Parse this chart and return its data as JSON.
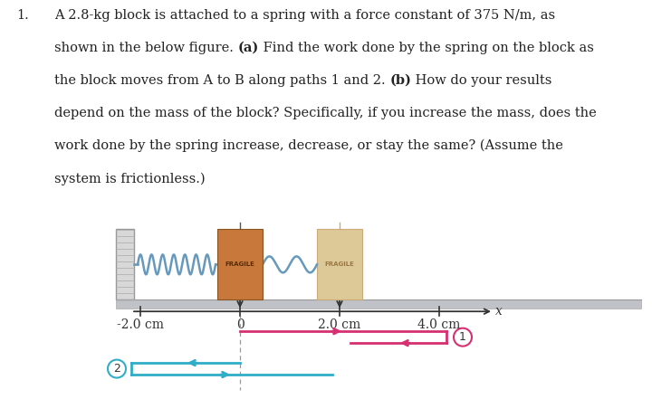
{
  "item_number": "1.",
  "text_lines": [
    [
      "A 2.8-kg block is attached to a spring with a force constant of 375 N/m, as"
    ],
    [
      "shown in the below figure. ",
      "(a)",
      " Find the work done by the spring on the block as"
    ],
    [
      "the block moves from A to B along paths 1 and 2. ",
      "(b)",
      " How do your results"
    ],
    [
      "depend on the mass of the block? Specifically, if you increase the mass, does the"
    ],
    [
      "work done by the spring increase, decrease, or stay the same? (Assume the"
    ],
    [
      "system is frictionless.)"
    ]
  ],
  "text_bold": [
    [
      false
    ],
    [
      false,
      true,
      false
    ],
    [
      false,
      true,
      false
    ],
    [
      false
    ],
    [
      false
    ],
    [
      false
    ]
  ],
  "background_color": "#ffffff",
  "wall_color": "#bbbbbb",
  "floor_color": "#c8c8cc",
  "spring_color": "#6699bb",
  "block_A_color": "#c8783a",
  "block_B_color": "#ddc898",
  "path1_color": "#d63070",
  "path2_color": "#30aec8",
  "axis_color": "#333333",
  "fragile_text": "FRAGILE",
  "text_fontsize": 10.5,
  "diagram_text_fontsize": 10
}
